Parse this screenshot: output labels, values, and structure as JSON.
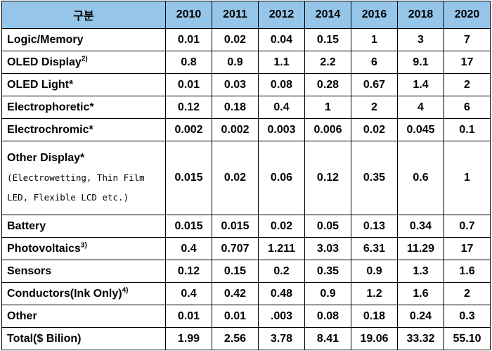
{
  "header": {
    "label": "구분",
    "years": [
      "2010",
      "2011",
      "2012",
      "2014",
      "2016",
      "2018",
      "2020"
    ]
  },
  "rows": [
    {
      "label": "Logic/Memory",
      "sup": "",
      "values": [
        "0.01",
        "0.02",
        "0.04",
        "0.15",
        "1",
        "3",
        "7"
      ]
    },
    {
      "label": "OLED Display",
      "sup": "2)",
      "values": [
        "0.8",
        "0.9",
        "1.1",
        "2.2",
        "6",
        "9.1",
        "17"
      ]
    },
    {
      "label": "OLED Light*",
      "sup": "",
      "values": [
        "0.01",
        "0.03",
        "0.08",
        "0.28",
        "0.67",
        "1.4",
        "2"
      ]
    },
    {
      "label": "Electrophoretic*",
      "sup": "",
      "values": [
        "0.12",
        "0.18",
        "0.4",
        "1",
        "2",
        "4",
        "6"
      ]
    },
    {
      "label": "Electrochromic*",
      "sup": "",
      "values": [
        "0.002",
        "0.002",
        "0.003",
        "0.006",
        "0.02",
        "0.045",
        "0.1"
      ]
    },
    {
      "label": "Other Display*",
      "sub_lines": [
        "(Electrowetting, Thin Film",
        "LED, Flexible LCD etc.)"
      ],
      "values": [
        "0.015",
        "0.02",
        "0.06",
        "0.12",
        "0.35",
        "0.6",
        "1"
      ]
    },
    {
      "label": "Battery",
      "sup": "",
      "values": [
        "0.015",
        "0.015",
        "0.02",
        "0.05",
        "0.13",
        "0.34",
        "0.7"
      ]
    },
    {
      "label": "Photovoltaics",
      "sup": "3)",
      "values": [
        "0.4",
        "0.707",
        "1.211",
        "3.03",
        "6.31",
        "11.29",
        "17"
      ]
    },
    {
      "label": "Sensors",
      "sup": "",
      "values": [
        "0.12",
        "0.15",
        "0.2",
        "0.35",
        "0.9",
        "1.3",
        "1.6"
      ]
    },
    {
      "label": "Conductors(Ink Only)",
      "sup": "4)",
      "values": [
        "0.4",
        "0.42",
        "0.48",
        "0.9",
        "1.2",
        "1.6",
        "2"
      ]
    },
    {
      "label": "Other",
      "sup": "",
      "values": [
        "0.01",
        "0.01",
        ".003",
        "0.08",
        "0.18",
        "0.24",
        "0.3"
      ]
    },
    {
      "label": "Total($ Bilion)",
      "sup": "",
      "values": [
        "1.99",
        "2.56",
        "3.78",
        "8.41",
        "19.06",
        "33.32",
        "55.10"
      ]
    }
  ],
  "colors": {
    "header_bg": "#95c5e8",
    "border": "#000000"
  }
}
